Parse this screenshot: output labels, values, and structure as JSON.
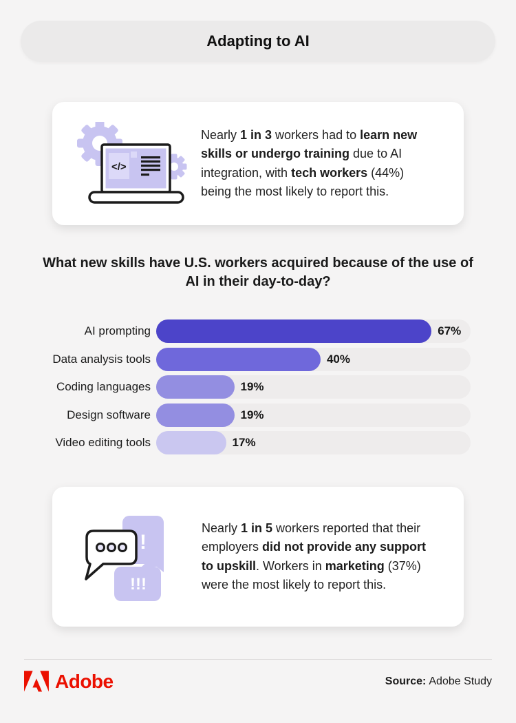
{
  "header": {
    "title": "Adapting to AI"
  },
  "cards": [
    {
      "icon": "laptop-code-gears-icon",
      "segments": [
        {
          "text": "Nearly ",
          "bold": false
        },
        {
          "text": "1 in 3",
          "bold": true
        },
        {
          "text": " workers had to ",
          "bold": false
        },
        {
          "text": "learn new\nskills or undergo training",
          "bold": true
        },
        {
          "text": " due to AI\nintegration, with ",
          "bold": false
        },
        {
          "text": "tech workers",
          "bold": true
        },
        {
          "text": " (44%)\nbeing the most likely to report this.",
          "bold": false
        }
      ]
    },
    {
      "icon": "chat-bubbles-icon",
      "segments": [
        {
          "text": "Nearly ",
          "bold": false
        },
        {
          "text": "1 in 5",
          "bold": true
        },
        {
          "text": " workers reported that their\nemployers ",
          "bold": false
        },
        {
          "text": "did not provide any support\nto upskill",
          "bold": true
        },
        {
          "text": ". Workers in ",
          "bold": false
        },
        {
          "text": "marketing",
          "bold": true
        },
        {
          "text": " (37%)\nwere the most likely to report this.",
          "bold": false
        }
      ]
    }
  ],
  "chart_data": {
    "type": "bar",
    "orientation": "horizontal",
    "title": "What new skills have U.S. workers acquired because of the use of AI in their day-to-day?",
    "categories": [
      "AI prompting",
      "Data analysis tools",
      "Coding languages",
      "Design software",
      "Video editing tools"
    ],
    "values": [
      67,
      40,
      19,
      19,
      17
    ],
    "value_labels": [
      "67%",
      "40%",
      "19%",
      "19%",
      "17%"
    ],
    "bar_colors": [
      "#4C44C9",
      "#6F68DB",
      "#938EE1",
      "#938EE1",
      "#CAC7F0"
    ],
    "track_color": "#EEECEC",
    "xlim": [
      0,
      76.5
    ],
    "grid": false,
    "legend": false,
    "value_label_position": "outside-end"
  },
  "footer": {
    "brand": "Adobe",
    "brand_color": "#EB1000",
    "source_label": "Source:",
    "source_text": "Adobe Study"
  },
  "colors": {
    "page_bg": "#F5F4F4",
    "pill_bg": "#EBEAEA",
    "card_bg": "#FFFFFF",
    "icon_lavender": "#C8C4F1",
    "icon_lavender_light": "#DCD9F8",
    "icon_outline": "#1B1B1B",
    "text": "#1D1D1D"
  }
}
